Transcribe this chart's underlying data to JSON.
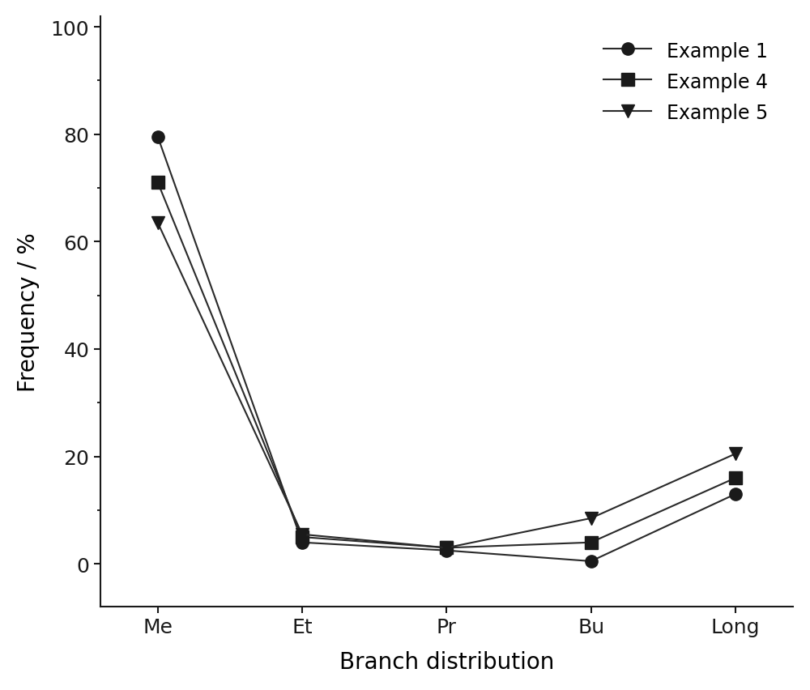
{
  "categories": [
    "Me",
    "Et",
    "Pr",
    "Bu",
    "Long"
  ],
  "series": [
    {
      "label": "Example 1",
      "values": [
        79.5,
        4.0,
        2.5,
        0.5,
        13.0
      ],
      "marker": "o",
      "color": "#1a1a1a"
    },
    {
      "label": "Example 4",
      "values": [
        71.0,
        5.0,
        3.0,
        4.0,
        16.0
      ],
      "marker": "s",
      "color": "#1a1a1a"
    },
    {
      "label": "Example 5",
      "values": [
        63.5,
        5.5,
        3.0,
        8.5,
        20.5
      ],
      "marker": "v",
      "color": "#1a1a1a"
    }
  ],
  "xlabel": "Branch distribution",
  "ylabel": "Frequency / %",
  "ylim": [
    -8,
    102
  ],
  "yticks": [
    0,
    20,
    40,
    60,
    80,
    100
  ],
  "title": "",
  "legend_loc": "upper right",
  "line_color": "#2a2a2a",
  "line_width": 1.5,
  "marker_size": 11,
  "xlabel_fontsize": 20,
  "ylabel_fontsize": 20,
  "tick_fontsize": 18,
  "legend_fontsize": 17
}
